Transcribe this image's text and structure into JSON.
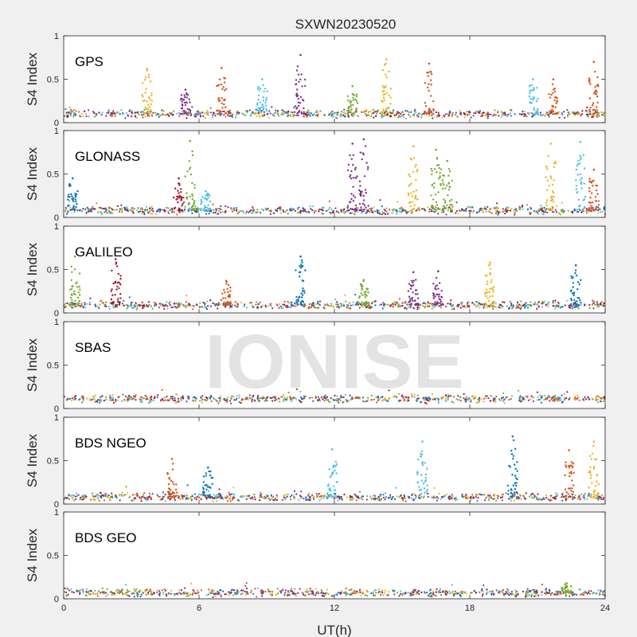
{
  "figure": {
    "title": "SXWN20230520",
    "xlabel": "UT(h)",
    "watermark": "IONISE",
    "background": "#f0f0f0",
    "series_colors": [
      "#0072bd",
      "#d95319",
      "#edb120",
      "#7e2f8e",
      "#77ac30",
      "#4dbeee",
      "#a2142f"
    ]
  },
  "chart_data": [
    {
      "type": "scatter",
      "label": "GPS",
      "ylabel": "S4 Index",
      "xlim": [
        0,
        24
      ],
      "ylim": [
        0,
        1
      ],
      "xticks": [
        0,
        6,
        12,
        18,
        24
      ],
      "yticks": [
        0,
        0.5,
        1
      ],
      "baseline": 0.1,
      "spikes": [
        {
          "x": 3.7,
          "y": 0.62,
          "series": 2
        },
        {
          "x": 5.4,
          "y": 0.38,
          "series": 3
        },
        {
          "x": 7.0,
          "y": 0.63,
          "series": 1
        },
        {
          "x": 8.8,
          "y": 0.5,
          "series": 5
        },
        {
          "x": 10.5,
          "y": 0.78,
          "series": 3
        },
        {
          "x": 12.8,
          "y": 0.42,
          "series": 4
        },
        {
          "x": 14.3,
          "y": 0.73,
          "series": 2
        },
        {
          "x": 16.2,
          "y": 0.68,
          "series": 1
        },
        {
          "x": 20.8,
          "y": 0.5,
          "series": 5
        },
        {
          "x": 21.7,
          "y": 0.5,
          "series": 1
        },
        {
          "x": 23.5,
          "y": 0.7,
          "series": 1
        }
      ]
    },
    {
      "type": "scatter",
      "label": "GLONASS",
      "ylabel": "S4 Index",
      "xlim": [
        0,
        24
      ],
      "ylim": [
        0,
        1
      ],
      "xticks": [
        0,
        6,
        12,
        18,
        24
      ],
      "yticks": [
        0,
        0.5,
        1
      ],
      "baseline": 0.08,
      "spikes": [
        {
          "x": 0.4,
          "y": 0.45,
          "series": 0
        },
        {
          "x": 5.1,
          "y": 0.45,
          "series": 6
        },
        {
          "x": 5.6,
          "y": 0.88,
          "series": 4
        },
        {
          "x": 6.3,
          "y": 0.3,
          "series": 5
        },
        {
          "x": 12.8,
          "y": 0.85,
          "series": 3
        },
        {
          "x": 13.3,
          "y": 0.9,
          "series": 3
        },
        {
          "x": 15.5,
          "y": 0.82,
          "series": 2
        },
        {
          "x": 16.5,
          "y": 0.78,
          "series": 4
        },
        {
          "x": 17.0,
          "y": 0.65,
          "series": 4
        },
        {
          "x": 21.6,
          "y": 0.85,
          "series": 2
        },
        {
          "x": 22.9,
          "y": 0.87,
          "series": 5
        },
        {
          "x": 23.5,
          "y": 0.55,
          "series": 1
        }
      ]
    },
    {
      "type": "scatter",
      "label": "GALILEO",
      "ylabel": "S4 Index",
      "xlim": [
        0,
        24
      ],
      "ylim": [
        0,
        1
      ],
      "xticks": [
        0,
        6,
        12,
        18,
        24
      ],
      "yticks": [
        0,
        0.5,
        1
      ],
      "baseline": 0.09,
      "spikes": [
        {
          "x": 0.5,
          "y": 0.65,
          "series": 4
        },
        {
          "x": 2.3,
          "y": 0.62,
          "series": 6
        },
        {
          "x": 7.2,
          "y": 0.37,
          "series": 1
        },
        {
          "x": 10.5,
          "y": 0.65,
          "series": 0
        },
        {
          "x": 13.3,
          "y": 0.38,
          "series": 4
        },
        {
          "x": 15.5,
          "y": 0.47,
          "series": 3
        },
        {
          "x": 16.6,
          "y": 0.48,
          "series": 3
        },
        {
          "x": 18.9,
          "y": 0.58,
          "series": 2
        },
        {
          "x": 22.7,
          "y": 0.55,
          "series": 0
        }
      ]
    },
    {
      "type": "scatter",
      "label": "SBAS",
      "ylabel": "S4 Index",
      "xlim": [
        0,
        24
      ],
      "ylim": [
        0,
        1
      ],
      "xticks": [
        0,
        6,
        12,
        18,
        24
      ],
      "yticks": [
        0,
        0.5,
        1
      ],
      "baseline": 0.11,
      "spikes": []
    },
    {
      "type": "scatter",
      "label": "BDS NGEO",
      "ylabel": "S4 Index",
      "xlim": [
        0,
        24
      ],
      "ylim": [
        0,
        1
      ],
      "xticks": [
        0,
        6,
        12,
        18,
        24
      ],
      "yticks": [
        0,
        0.5,
        1
      ],
      "baseline": 0.08,
      "spikes": [
        {
          "x": 4.8,
          "y": 0.52,
          "series": 1
        },
        {
          "x": 6.4,
          "y": 0.42,
          "series": 0
        },
        {
          "x": 11.9,
          "y": 0.63,
          "series": 5
        },
        {
          "x": 15.9,
          "y": 0.72,
          "series": 5
        },
        {
          "x": 19.9,
          "y": 0.78,
          "series": 0
        },
        {
          "x": 22.4,
          "y": 0.62,
          "series": 1
        },
        {
          "x": 23.5,
          "y": 0.72,
          "series": 2
        }
      ]
    },
    {
      "type": "scatter",
      "label": "BDS GEO",
      "ylabel": "S4 Index",
      "xlim": [
        0,
        24
      ],
      "ylim": [
        0,
        1
      ],
      "xticks": [
        0,
        6,
        12,
        18,
        24
      ],
      "yticks": [
        0,
        0.5,
        1
      ],
      "baseline": 0.07,
      "spikes": [
        {
          "x": 22.3,
          "y": 0.18,
          "series": 4
        }
      ]
    }
  ]
}
